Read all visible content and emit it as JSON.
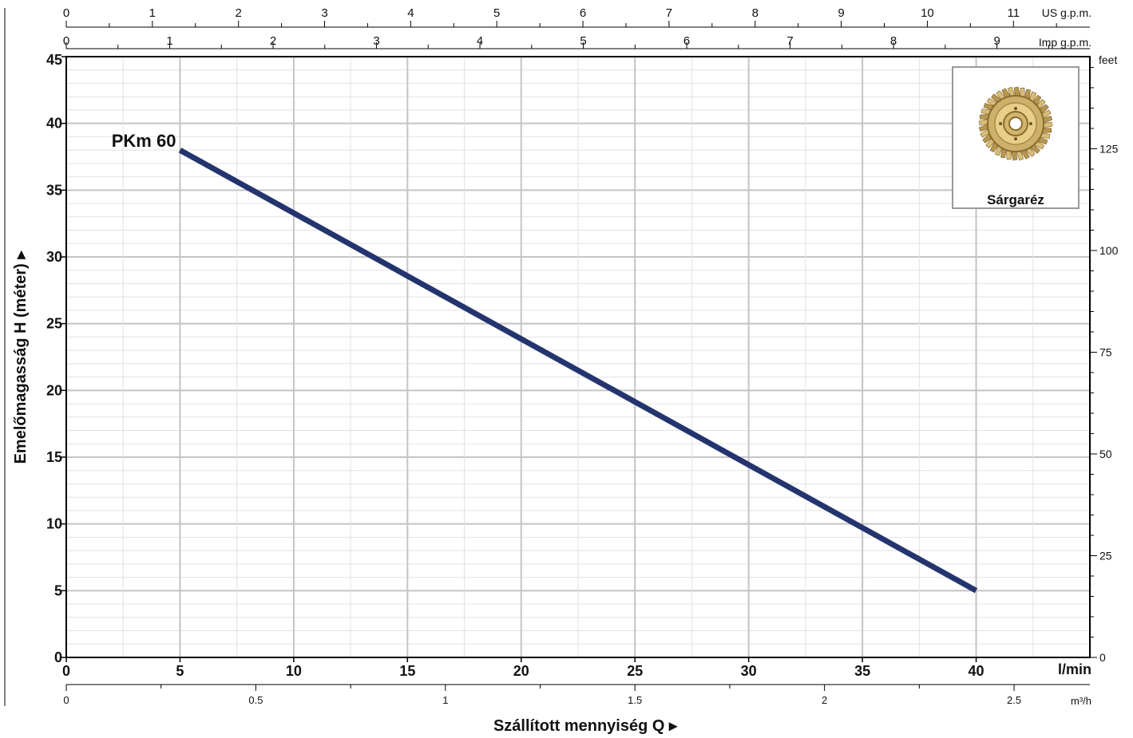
{
  "chart_data": {
    "type": "line",
    "series": [
      {
        "name": "PKm 60",
        "color": "#24346e",
        "points": [
          [
            5,
            38
          ],
          [
            40,
            5
          ]
        ]
      }
    ],
    "x_axis": {
      "label": "Szállított mennyiség  Q",
      "unit": "l/min",
      "range": [
        0,
        45
      ],
      "ticks": [
        0,
        5,
        10,
        15,
        20,
        25,
        30,
        35,
        40
      ]
    },
    "y_axis": {
      "label": "Emelőmagasság  H  (méter)",
      "range": [
        0,
        45
      ],
      "ticks": [
        0,
        5,
        10,
        15,
        20,
        25,
        30,
        35,
        40,
        45
      ]
    },
    "secondary_axes": {
      "us_gpm": {
        "unit": "US g.p.m.",
        "ticks": [
          0,
          1,
          2,
          3,
          4,
          5,
          6,
          7,
          8,
          9,
          10,
          11
        ]
      },
      "imp_gpm": {
        "unit": "Imp g.p.m.",
        "ticks": [
          0,
          1,
          2,
          3,
          4,
          5,
          6,
          7,
          8,
          9
        ]
      },
      "m3h": {
        "unit": "m³/h",
        "ticks": [
          "0",
          "0.5",
          "1",
          "1.5",
          "2",
          "2.5"
        ]
      },
      "feet": {
        "unit": "feet",
        "ticks": [
          0,
          25,
          50,
          75,
          100,
          125
        ]
      }
    },
    "grid": true,
    "inset": {
      "caption": "Sárgaréz",
      "icon": "brass-impeller-icon"
    }
  }
}
